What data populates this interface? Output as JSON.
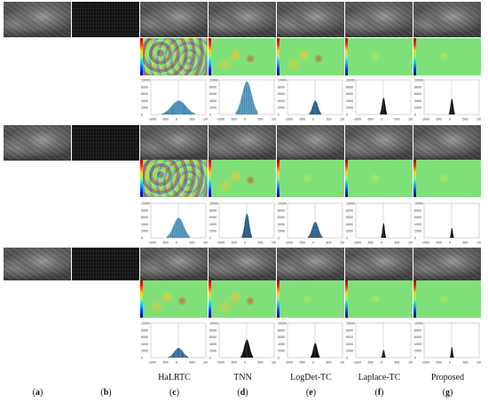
{
  "columns": [
    {
      "letter": "a",
      "method": ""
    },
    {
      "letter": "b",
      "method": ""
    },
    {
      "letter": "c",
      "method": "HaLRTC"
    },
    {
      "letter": "d",
      "method": "TNN"
    },
    {
      "letter": "e",
      "method": "LogDet-TC"
    },
    {
      "letter": "f",
      "method": "Laplace-TC"
    },
    {
      "letter": "g",
      "method": "Proposed"
    }
  ],
  "histogram_axes": {
    "y_ticks": [
      "10000",
      "8000",
      "6000",
      "4000",
      "2000",
      "0"
    ],
    "x_ticks": [
      "-1000",
      "-500",
      "0",
      "500",
      "1000"
    ]
  },
  "histograms": [
    {
      "row": 1,
      "method": "HaLRTC",
      "peak": 0.4,
      "width": 0.6,
      "color": "#3e86b0"
    },
    {
      "row": 1,
      "method": "TNN",
      "peak": 0.95,
      "width": 0.4,
      "color": "#3e86b0"
    },
    {
      "row": 1,
      "method": "LogDet-TC",
      "peak": 0.4,
      "width": 0.22,
      "color": "#2a5f86"
    },
    {
      "row": 1,
      "method": "Laplace-TC",
      "peak": 0.48,
      "width": 0.12,
      "color": "#111111"
    },
    {
      "row": 1,
      "method": "Proposed",
      "peak": 0.45,
      "width": 0.1,
      "color": "#111111"
    },
    {
      "row": 2,
      "method": "HaLRTC",
      "peak": 0.58,
      "width": 0.42,
      "color": "#3e86b0"
    },
    {
      "row": 2,
      "method": "TNN",
      "peak": 0.7,
      "width": 0.18,
      "color": "#2a5f86"
    },
    {
      "row": 2,
      "method": "LogDet-TC",
      "peak": 0.46,
      "width": 0.26,
      "color": "#2a5f86"
    },
    {
      "row": 2,
      "method": "Laplace-TC",
      "peak": 0.42,
      "width": 0.08,
      "color": "#111111"
    },
    {
      "row": 2,
      "method": "Proposed",
      "peak": 0.28,
      "width": 0.06,
      "color": "#111111"
    },
    {
      "row": 3,
      "method": "HaLRTC",
      "peak": 0.28,
      "width": 0.36,
      "color": "#2a5f86"
    },
    {
      "row": 3,
      "method": "TNN",
      "peak": 0.52,
      "width": 0.22,
      "color": "#111111"
    },
    {
      "row": 3,
      "method": "LogDet-TC",
      "peak": 0.42,
      "width": 0.16,
      "color": "#111111"
    },
    {
      "row": 3,
      "method": "Laplace-TC",
      "peak": 0.22,
      "width": 0.07,
      "color": "#111111"
    },
    {
      "row": 3,
      "method": "Proposed",
      "peak": 0.3,
      "width": 0.06,
      "color": "#111111"
    }
  ]
}
